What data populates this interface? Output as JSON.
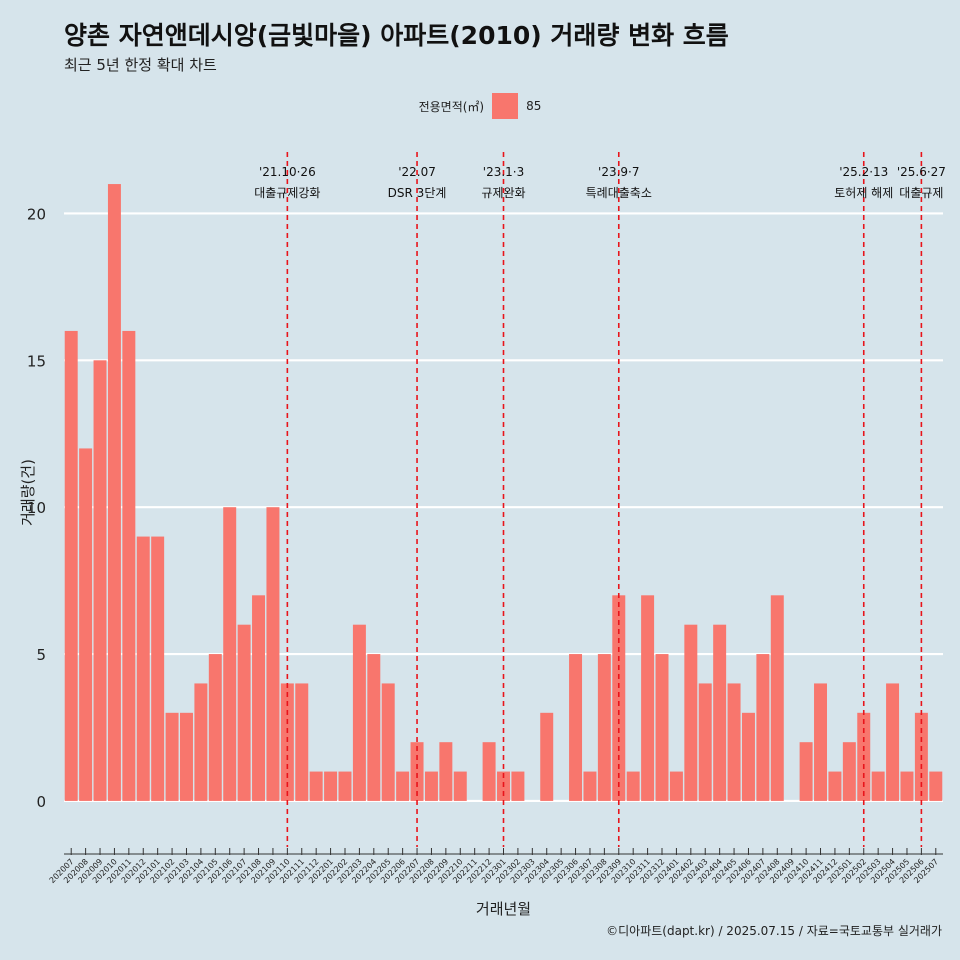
{
  "title": "양촌 자연앤데시앙(금빛마을) 아파트(2010) 거래량 변화 흐름",
  "subtitle": "최근 5년 한정 확대 차트",
  "caption": "©디아파트(dapt.kr) / 2025.07.15 / 자료=국토교통부 실거래가",
  "legend": {
    "title": "전용면적(㎡)",
    "item": "85",
    "color": "#f8766d"
  },
  "colors": {
    "background": "#d6e4eb",
    "bar": "#f8766d",
    "grid": "#ffffff",
    "event_line": "#e8141b"
  },
  "chart_data": {
    "type": "bar",
    "title": "양촌 자연앤데시앙(금빛마을) 아파트(2010) 거래량 변화 흐름",
    "subtitle": "최근 5년 한정 확대 차트",
    "xlabel": "거래년월",
    "ylabel": "거래량(건)",
    "ylim": [
      -1.5,
      22.5
    ],
    "yticks": [
      0,
      5,
      10,
      15,
      20
    ],
    "grid": true,
    "legend_position": "top",
    "categories": [
      "202007",
      "202008",
      "202009",
      "202010",
      "202011",
      "202012",
      "202101",
      "202102",
      "202103",
      "202104",
      "202105",
      "202106",
      "202107",
      "202108",
      "202109",
      "202110",
      "202111",
      "202112",
      "202201",
      "202202",
      "202203",
      "202204",
      "202205",
      "202206",
      "202207",
      "202208",
      "202209",
      "202210",
      "202211",
      "202212",
      "202301",
      "202302",
      "202303",
      "202304",
      "202305",
      "202306",
      "202307",
      "202308",
      "202309",
      "202310",
      "202311",
      "202312",
      "202401",
      "202402",
      "202403",
      "202404",
      "202405",
      "202406",
      "202407",
      "202408",
      "202409",
      "202410",
      "202411",
      "202412",
      "202501",
      "202502",
      "202503",
      "202504",
      "202505",
      "202506",
      "202507"
    ],
    "series": [
      {
        "name": "85",
        "values": [
          16,
          12,
          15,
          21,
          16,
          9,
          9,
          3,
          3,
          4,
          5,
          10,
          6,
          7,
          10,
          4,
          4,
          1,
          1,
          1,
          6,
          5,
          4,
          1,
          2,
          1,
          2,
          1,
          0,
          2,
          1,
          1,
          0,
          3,
          0,
          5,
          1,
          5,
          7,
          1,
          7,
          5,
          1,
          6,
          4,
          6,
          4,
          3,
          5,
          7,
          0,
          2,
          4,
          1,
          2,
          3,
          1,
          4,
          1,
          3,
          1
        ]
      }
    ],
    "events": [
      {
        "date": "'21.10·26",
        "label": "대출규제강화",
        "month": "202110"
      },
      {
        "date": "'22.07",
        "label": "DSR 3단계",
        "month": "202207"
      },
      {
        "date": "'23.1·3",
        "label": "규제완화",
        "month": "202301"
      },
      {
        "date": "'23.9·7",
        "label": "특례대출축소",
        "month": "202309"
      },
      {
        "date": "'25.2·13",
        "label": "토허제 해제",
        "month": "202502"
      },
      {
        "date": "'25.6·27",
        "label": "대출규제",
        "month": "202506"
      }
    ]
  }
}
